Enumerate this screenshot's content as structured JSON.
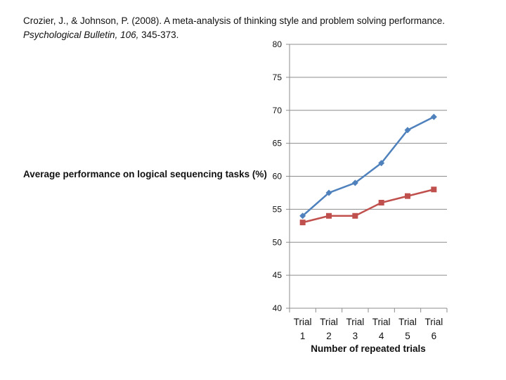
{
  "citation": {
    "line1": "Crozier, J., & Johnson, P. (2008). A meta-analysis of thinking style and problem solving performance.",
    "journal": "Psychological Bulletin, 106,",
    "pages": " 345-373."
  },
  "chart_data": {
    "type": "line",
    "title": "",
    "xlabel": "Number of repeated trials",
    "ylabel": "Average performance on logical sequencing tasks (%)",
    "categories": [
      "Trial 1",
      "Trial 2",
      "Trial 3",
      "Trial 4",
      "Trial 5",
      "Trial 6"
    ],
    "y_ticks": [
      40,
      45,
      50,
      55,
      60,
      65,
      70,
      75,
      80
    ],
    "ylim": [
      40,
      80
    ],
    "grid": "horizontal",
    "legend": "none",
    "series": [
      {
        "values": [
          54,
          57.5,
          59,
          62,
          67,
          69
        ],
        "color": "#4F81BD",
        "marker": "diamond"
      },
      {
        "values": [
          53,
          54,
          54,
          56,
          57,
          58
        ],
        "color": "#C0504D",
        "marker": "square"
      }
    ]
  }
}
